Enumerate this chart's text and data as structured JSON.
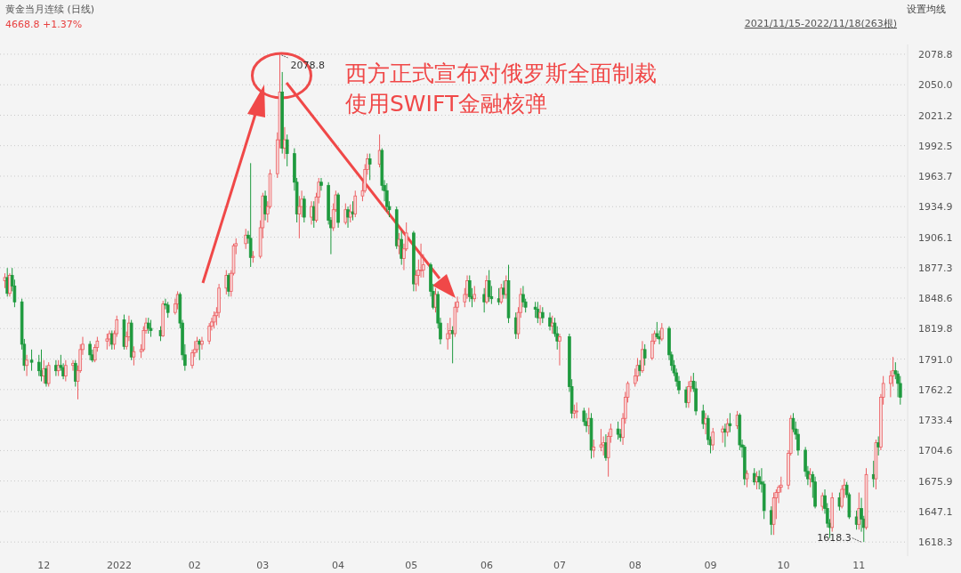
{
  "chart_data": {
    "type": "candlestick",
    "title": "黄金当月连续 (日线)",
    "subtitle": "2021/11/15-2022/11/18(263根)",
    "annotations": [
      "4668.8 +1.37%",
      "设置均线",
      "西方正式宣布对俄罗斯全面制裁",
      "使用SWIFT金融核弹",
      {
        "text": "2078.8",
        "x": "2022-03-08",
        "y": 2078.8
      },
      {
        "text": "1618.3",
        "x": "2022-11-03",
        "y": 1618.3
      }
    ],
    "grid": "y",
    "ylim": [
      1605,
      2088
    ],
    "yticks": [
      1618.3,
      1647.1,
      1675.9,
      1704.6,
      1733.4,
      1762.2,
      {
        "value": 1791,
        "label": "1791.0"
      },
      1819.8,
      1848.6,
      1877.3,
      1906.1,
      1934.9,
      1963.7,
      1992.5,
      2021.2,
      {
        "value": 2050,
        "label": "2050.0"
      },
      2078.8
    ],
    "xlim": [
      "2021-11-13",
      "2022-11-21"
    ],
    "xticks": [
      {
        "value": "2021-12-01",
        "label": "12"
      },
      {
        "value": "2022-01-01",
        "label": "2022"
      },
      {
        "value": "2022-02-01",
        "label": "02"
      },
      {
        "value": "2022-03-01",
        "label": "03"
      },
      {
        "value": "2022-04-01",
        "label": "04"
      },
      {
        "value": "2022-05-01",
        "label": "05"
      },
      {
        "value": "2022-06-01",
        "label": "06"
      },
      {
        "value": "2022-07-01",
        "label": "07"
      },
      {
        "value": "2022-08-01",
        "label": "08"
      },
      {
        "value": "2022-09-01",
        "label": "09"
      },
      {
        "value": "2022-10-01",
        "label": "10"
      },
      {
        "value": "2022-11-01",
        "label": "11"
      }
    ],
    "x": [
      "2021-11-15",
      "2021-11-16",
      "2021-11-17",
      "2021-11-18",
      "2021-11-19",
      "2021-11-22",
      "2021-11-23",
      "2021-11-24",
      "2021-11-26",
      "2021-11-29",
      "2021-11-30",
      "2021-12-01",
      "2021-12-02",
      "2021-12-03",
      "2021-12-06",
      "2021-12-07",
      "2021-12-08",
      "2021-12-09",
      "2021-12-10",
      "2021-12-13",
      "2021-12-14",
      "2021-12-15",
      "2021-12-16",
      "2021-12-17",
      "2021-12-20",
      "2021-12-21",
      "2021-12-22",
      "2021-12-23",
      "2021-12-27",
      "2021-12-28",
      "2021-12-29",
      "2021-12-30",
      "2021-12-31",
      "2022-01-03",
      "2022-01-04",
      "2022-01-05",
      "2022-01-06",
      "2022-01-07",
      "2022-01-10",
      "2022-01-11",
      "2022-01-12",
      "2022-01-13",
      "2022-01-14",
      "2022-01-18",
      "2022-01-19",
      "2022-01-20",
      "2022-01-21",
      "2022-01-24",
      "2022-01-25",
      "2022-01-26",
      "2022-01-27",
      "2022-01-28",
      "2022-01-31",
      "2022-02-01",
      "2022-02-02",
      "2022-02-03",
      "2022-02-04",
      "2022-02-07",
      "2022-02-08",
      "2022-02-09",
      "2022-02-10",
      "2022-02-11",
      "2022-02-14",
      "2022-02-15",
      "2022-02-16",
      "2022-02-17",
      "2022-02-18",
      "2022-02-22",
      "2022-02-23",
      "2022-02-24",
      "2022-02-25",
      "2022-02-28",
      "2022-03-01",
      "2022-03-02",
      "2022-03-03",
      "2022-03-04",
      "2022-03-07",
      "2022-03-08",
      "2022-03-09",
      "2022-03-10",
      "2022-03-11",
      "2022-03-14",
      "2022-03-15",
      "2022-03-16",
      "2022-03-17",
      "2022-03-18",
      "2022-03-21",
      "2022-03-22",
      "2022-03-23",
      "2022-03-24",
      "2022-03-25",
      "2022-03-28",
      "2022-03-29",
      "2022-03-30",
      "2022-03-31",
      "2022-04-01",
      "2022-04-04",
      "2022-04-05",
      "2022-04-06",
      "2022-04-07",
      "2022-04-08",
      "2022-04-11",
      "2022-04-12",
      "2022-04-13",
      "2022-04-14",
      "2022-04-18",
      "2022-04-19",
      "2022-04-20",
      "2022-04-21",
      "2022-04-22",
      "2022-04-25",
      "2022-04-26",
      "2022-04-27",
      "2022-04-28",
      "2022-04-29",
      "2022-05-02",
      "2022-05-03",
      "2022-05-04",
      "2022-05-05",
      "2022-05-06",
      "2022-05-09",
      "2022-05-10",
      "2022-05-11",
      "2022-05-12",
      "2022-05-13",
      "2022-05-16",
      "2022-05-17",
      "2022-05-18",
      "2022-05-19",
      "2022-05-20",
      "2022-05-23",
      "2022-05-24",
      "2022-05-25",
      "2022-05-26",
      "2022-05-27",
      "2022-05-31",
      "2022-06-01",
      "2022-06-02",
      "2022-06-03",
      "2022-06-06",
      "2022-06-07",
      "2022-06-08",
      "2022-06-09",
      "2022-06-10",
      "2022-06-13",
      "2022-06-14",
      "2022-06-15",
      "2022-06-16",
      "2022-06-17",
      "2022-06-21",
      "2022-06-22",
      "2022-06-23",
      "2022-06-24",
      "2022-06-27",
      "2022-06-28",
      "2022-06-29",
      "2022-06-30",
      "2022-07-01",
      "2022-07-05",
      "2022-07-06",
      "2022-07-07",
      "2022-07-08",
      "2022-07-11",
      "2022-07-12",
      "2022-07-13",
      "2022-07-14",
      "2022-07-15",
      "2022-07-18",
      "2022-07-19",
      "2022-07-20",
      "2022-07-21",
      "2022-07-22",
      "2022-07-25",
      "2022-07-26",
      "2022-07-27",
      "2022-07-28",
      "2022-07-29",
      "2022-08-01",
      "2022-08-02",
      "2022-08-03",
      "2022-08-04",
      "2022-08-05",
      "2022-08-08",
      "2022-08-09",
      "2022-08-10",
      "2022-08-11",
      "2022-08-12",
      "2022-08-15",
      "2022-08-16",
      "2022-08-17",
      "2022-08-18",
      "2022-08-19",
      "2022-08-22",
      "2022-08-23",
      "2022-08-24",
      "2022-08-25",
      "2022-08-26",
      "2022-08-29",
      "2022-08-30",
      "2022-08-31",
      "2022-09-01",
      "2022-09-02",
      "2022-09-06",
      "2022-09-07",
      "2022-09-08",
      "2022-09-09",
      "2022-09-12",
      "2022-09-13",
      "2022-09-14",
      "2022-09-15",
      "2022-09-16",
      "2022-09-19",
      "2022-09-20",
      "2022-09-21",
      "2022-09-22",
      "2022-09-23",
      "2022-09-26",
      "2022-09-27",
      "2022-09-28",
      "2022-09-29",
      "2022-09-30",
      "2022-10-03",
      "2022-10-04",
      "2022-10-05",
      "2022-10-06",
      "2022-10-07",
      "2022-10-10",
      "2022-10-11",
      "2022-10-12",
      "2022-10-13",
      "2022-10-14",
      "2022-10-17",
      "2022-10-18",
      "2022-10-19",
      "2022-10-20",
      "2022-10-21",
      "2022-10-24",
      "2022-10-25",
      "2022-10-26",
      "2022-10-27",
      "2022-10-28",
      "2022-10-31",
      "2022-11-01",
      "2022-11-02",
      "2022-11-03",
      "2022-11-04",
      "2022-11-07",
      "2022-11-08",
      "2022-11-09",
      "2022-11-10",
      "2022-11-11",
      "2022-11-14",
      "2022-11-15",
      "2022-11-16",
      "2022-11-17",
      "2022-11-18"
    ],
    "ohlc": [
      [
        1865,
        1872,
        1858,
        1868
      ],
      [
        1868,
        1877,
        1850,
        1853
      ],
      [
        1853,
        1872,
        1850,
        1870
      ],
      [
        1870,
        1877,
        1855,
        1860
      ],
      [
        1860,
        1866,
        1840,
        1845
      ],
      [
        1845,
        1848,
        1800,
        1805
      ],
      [
        1805,
        1810,
        1780,
        1785
      ],
      [
        1785,
        1795,
        1775,
        1790
      ],
      [
        1790,
        1800,
        1780,
        1788
      ],
      [
        1788,
        1795,
        1775,
        1780
      ],
      [
        1780,
        1800,
        1770,
        1775
      ],
      [
        1775,
        1790,
        1768,
        1782
      ],
      [
        1782,
        1785,
        1765,
        1768
      ],
      [
        1768,
        1788,
        1765,
        1785
      ],
      [
        1785,
        1790,
        1775,
        1780
      ],
      [
        1780,
        1790,
        1775,
        1785
      ],
      [
        1785,
        1795,
        1780,
        1783
      ],
      [
        1783,
        1787,
        1772,
        1775
      ],
      [
        1775,
        1790,
        1770,
        1785
      ],
      [
        1785,
        1790,
        1780,
        1787
      ],
      [
        1787,
        1790,
        1765,
        1770
      ],
      [
        1770,
        1785,
        1753,
        1780
      ],
      [
        1780,
        1805,
        1778,
        1800
      ],
      [
        1800,
        1812,
        1795,
        1805
      ],
      [
        1805,
        1808,
        1790,
        1795
      ],
      [
        1795,
        1800,
        1788,
        1790
      ],
      [
        1790,
        1805,
        1788,
        1802
      ],
      [
        1802,
        1812,
        1798,
        1808
      ],
      [
        1808,
        1815,
        1800,
        1810
      ],
      [
        1810,
        1818,
        1803,
        1815
      ],
      [
        1815,
        1818,
        1800,
        1805
      ],
      [
        1805,
        1818,
        1800,
        1815
      ],
      [
        1815,
        1832,
        1812,
        1828
      ],
      [
        1828,
        1833,
        1800,
        1803
      ],
      [
        1803,
        1817,
        1800,
        1812
      ],
      [
        1812,
        1832,
        1808,
        1825
      ],
      [
        1825,
        1828,
        1790,
        1793
      ],
      [
        1793,
        1803,
        1785,
        1798
      ],
      [
        1798,
        1805,
        1792,
        1800
      ],
      [
        1800,
        1822,
        1798,
        1818
      ],
      [
        1818,
        1830,
        1815,
        1825
      ],
      [
        1825,
        1830,
        1815,
        1820
      ],
      [
        1820,
        1828,
        1812,
        1818
      ],
      [
        1818,
        1822,
        1808,
        1813
      ],
      [
        1813,
        1846,
        1812,
        1843
      ],
      [
        1843,
        1848,
        1838,
        1842
      ],
      [
        1842,
        1845,
        1830,
        1835
      ],
      [
        1835,
        1848,
        1833,
        1843
      ],
      [
        1843,
        1855,
        1838,
        1852
      ],
      [
        1852,
        1854,
        1820,
        1825
      ],
      [
        1825,
        1828,
        1790,
        1795
      ],
      [
        1795,
        1805,
        1780,
        1785
      ],
      [
        1785,
        1800,
        1782,
        1797
      ],
      [
        1797,
        1808,
        1793,
        1800
      ],
      [
        1800,
        1812,
        1797,
        1808
      ],
      [
        1808,
        1810,
        1790,
        1805
      ],
      [
        1805,
        1812,
        1800,
        1808
      ],
      [
        1808,
        1825,
        1805,
        1822
      ],
      [
        1822,
        1830,
        1818,
        1826
      ],
      [
        1826,
        1836,
        1820,
        1832
      ],
      [
        1832,
        1840,
        1823,
        1835
      ],
      [
        1835,
        1862,
        1830,
        1858
      ],
      [
        1858,
        1875,
        1852,
        1870
      ],
      [
        1870,
        1872,
        1850,
        1855
      ],
      [
        1855,
        1875,
        1850,
        1872
      ],
      [
        1872,
        1900,
        1870,
        1898
      ],
      [
        1898,
        1905,
        1890,
        1900
      ],
      [
        1900,
        1914,
        1895,
        1908
      ],
      [
        1908,
        1912,
        1900,
        1905
      ],
      [
        1905,
        1976,
        1878,
        1887
      ],
      [
        1887,
        1893,
        1882,
        1888
      ],
      [
        1888,
        1922,
        1886,
        1915
      ],
      [
        1915,
        1948,
        1905,
        1945
      ],
      [
        1945,
        1950,
        1922,
        1928
      ],
      [
        1928,
        1940,
        1920,
        1935
      ],
      [
        1935,
        1970,
        1933,
        1966
      ],
      [
        1966,
        2005,
        1962,
        1998
      ],
      [
        1998,
        2078.8,
        1990,
        2043
      ],
      [
        2043,
        2062,
        1985,
        1990
      ],
      [
        1990,
        2010,
        1980,
        1998
      ],
      [
        1998,
        2003,
        1973,
        1985
      ],
      [
        1985,
        1990,
        1950,
        1958
      ],
      [
        1958,
        1962,
        1920,
        1928
      ],
      [
        1928,
        1945,
        1905,
        1935
      ],
      [
        1935,
        1950,
        1925,
        1942
      ],
      [
        1942,
        1945,
        1920,
        1925
      ],
      [
        1925,
        1940,
        1918,
        1935
      ],
      [
        1935,
        1940,
        1915,
        1922
      ],
      [
        1922,
        1948,
        1920,
        1944
      ],
      [
        1944,
        1962,
        1938,
        1958
      ],
      [
        1958,
        1962,
        1950,
        1955
      ],
      [
        1955,
        1958,
        1918,
        1922
      ],
      [
        1922,
        1925,
        1890,
        1915
      ],
      [
        1915,
        1938,
        1912,
        1932
      ],
      [
        1932,
        1950,
        1930,
        1946
      ],
      [
        1946,
        1948,
        1915,
        1920
      ],
      [
        1920,
        1938,
        1918,
        1932
      ],
      [
        1932,
        1935,
        1915,
        1925
      ],
      [
        1925,
        1937,
        1920,
        1930
      ],
      [
        1930,
        1940,
        1922,
        1928
      ],
      [
        1928,
        1950,
        1925,
        1945
      ],
      [
        1945,
        1958,
        1940,
        1950
      ],
      [
        1950,
        1975,
        1948,
        1970
      ],
      [
        1970,
        1985,
        1965,
        1980
      ],
      [
        1980,
        1985,
        1960,
        1975
      ],
      [
        1975,
        2003,
        1972,
        1988
      ],
      [
        1988,
        1990,
        1950,
        1955
      ],
      [
        1955,
        1960,
        1940,
        1950
      ],
      [
        1950,
        1957,
        1930,
        1935
      ],
      [
        1935,
        1940,
        1925,
        1932
      ],
      [
        1932,
        1935,
        1895,
        1898
      ],
      [
        1898,
        1910,
        1890,
        1904
      ],
      [
        1904,
        1912,
        1880,
        1886
      ],
      [
        1886,
        1900,
        1875,
        1895
      ],
      [
        1895,
        1920,
        1893,
        1910
      ],
      [
        1910,
        1912,
        1855,
        1862
      ],
      [
        1862,
        1875,
        1855,
        1870
      ],
      [
        1870,
        1885,
        1860,
        1875
      ],
      [
        1875,
        1900,
        1868,
        1875
      ],
      [
        1875,
        1890,
        1868,
        1880
      ],
      [
        1880,
        1882,
        1850,
        1855
      ],
      [
        1855,
        1862,
        1838,
        1840
      ],
      [
        1840,
        1858,
        1835,
        1852
      ],
      [
        1852,
        1855,
        1820,
        1825
      ],
      [
        1825,
        1830,
        1805,
        1810
      ],
      [
        1810,
        1825,
        1800,
        1815
      ],
      [
        1815,
        1830,
        1810,
        1818
      ],
      [
        1818,
        1822,
        1787,
        1815
      ],
      [
        1815,
        1845,
        1812,
        1840
      ],
      [
        1840,
        1850,
        1835,
        1845
      ],
      [
        1845,
        1858,
        1840,
        1852
      ],
      [
        1852,
        1870,
        1848,
        1865
      ],
      [
        1865,
        1870,
        1845,
        1850
      ],
      [
        1850,
        1858,
        1840,
        1848
      ],
      [
        1848,
        1860,
        1845,
        1852
      ],
      [
        1852,
        1858,
        1835,
        1845
      ],
      [
        1845,
        1870,
        1843,
        1865
      ],
      [
        1865,
        1875,
        1845,
        1850
      ],
      [
        1850,
        1860,
        1843,
        1848
      ],
      [
        1848,
        1858,
        1842,
        1845
      ],
      [
        1845,
        1862,
        1843,
        1858
      ],
      [
        1858,
        1865,
        1848,
        1852
      ],
      [
        1852,
        1870,
        1848,
        1865
      ],
      [
        1865,
        1880,
        1825,
        1830
      ],
      [
        1830,
        1835,
        1810,
        1815
      ],
      [
        1815,
        1840,
        1810,
        1835
      ],
      [
        1835,
        1858,
        1830,
        1852
      ],
      [
        1852,
        1860,
        1840,
        1845
      ],
      [
        1845,
        1848,
        1835,
        1840
      ],
      [
        1840,
        1845,
        1830,
        1838
      ],
      [
        1838,
        1845,
        1825,
        1830
      ],
      [
        1830,
        1842,
        1823,
        1835
      ],
      [
        1835,
        1840,
        1825,
        1830
      ],
      [
        1830,
        1835,
        1818,
        1822
      ],
      [
        1822,
        1832,
        1815,
        1825
      ],
      [
        1825,
        1830,
        1812,
        1815
      ],
      [
        1815,
        1822,
        1800,
        1808
      ],
      [
        1808,
        1815,
        1785,
        1812
      ],
      [
        1812,
        1815,
        1760,
        1765
      ],
      [
        1765,
        1772,
        1735,
        1740
      ],
      [
        1740,
        1748,
        1735,
        1742
      ],
      [
        1742,
        1750,
        1735,
        1742
      ],
      [
        1742,
        1745,
        1728,
        1732
      ],
      [
        1732,
        1740,
        1722,
        1728
      ],
      [
        1728,
        1745,
        1720,
        1735
      ],
      [
        1735,
        1740,
        1697,
        1705
      ],
      [
        1705,
        1715,
        1698,
        1708
      ],
      [
        1708,
        1725,
        1704,
        1710
      ],
      [
        1710,
        1718,
        1700,
        1712
      ],
      [
        1712,
        1720,
        1695,
        1698
      ],
      [
        1698,
        1722,
        1680,
        1718
      ],
      [
        1718,
        1730,
        1712,
        1725
      ],
      [
        1725,
        1732,
        1715,
        1720
      ],
      [
        1720,
        1725,
        1713,
        1717
      ],
      [
        1717,
        1740,
        1710,
        1735
      ],
      [
        1735,
        1760,
        1730,
        1755
      ],
      [
        1755,
        1770,
        1750,
        1768
      ],
      [
        1768,
        1782,
        1765,
        1775
      ],
      [
        1775,
        1792,
        1770,
        1785
      ],
      [
        1785,
        1790,
        1775,
        1780
      ],
      [
        1780,
        1808,
        1778,
        1800
      ],
      [
        1800,
        1805,
        1785,
        1792
      ],
      [
        1792,
        1815,
        1790,
        1808
      ],
      [
        1808,
        1818,
        1805,
        1815
      ],
      [
        1815,
        1826,
        1810,
        1812
      ],
      [
        1812,
        1818,
        1805,
        1810
      ],
      [
        1810,
        1825,
        1808,
        1820
      ],
      [
        1820,
        1822,
        1790,
        1795
      ],
      [
        1795,
        1798,
        1780,
        1785
      ],
      [
        1785,
        1790,
        1775,
        1778
      ],
      [
        1778,
        1782,
        1765,
        1770
      ],
      [
        1770,
        1775,
        1758,
        1762
      ],
      [
        1762,
        1765,
        1745,
        1750
      ],
      [
        1750,
        1770,
        1745,
        1765
      ],
      [
        1765,
        1775,
        1760,
        1770
      ],
      [
        1770,
        1778,
        1760,
        1763
      ],
      [
        1763,
        1770,
        1738,
        1742
      ],
      [
        1742,
        1748,
        1725,
        1730
      ],
      [
        1730,
        1740,
        1720,
        1735
      ],
      [
        1735,
        1738,
        1710,
        1715
      ],
      [
        1715,
        1718,
        1702,
        1710
      ],
      [
        1710,
        1726,
        1705,
        1722
      ],
      [
        1722,
        1728,
        1712,
        1725
      ],
      [
        1725,
        1730,
        1708,
        1722
      ],
      [
        1722,
        1735,
        1718,
        1730
      ],
      [
        1730,
        1740,
        1722,
        1728
      ],
      [
        1728,
        1742,
        1725,
        1738
      ],
      [
        1738,
        1740,
        1705,
        1710
      ],
      [
        1710,
        1715,
        1698,
        1708
      ],
      [
        1708,
        1710,
        1672,
        1678
      ],
      [
        1678,
        1686,
        1670,
        1683
      ],
      [
        1683,
        1688,
        1672,
        1675
      ],
      [
        1675,
        1685,
        1668,
        1680
      ],
      [
        1680,
        1686,
        1668,
        1675
      ],
      [
        1675,
        1688,
        1665,
        1673
      ],
      [
        1673,
        1676,
        1640,
        1648
      ],
      [
        1648,
        1652,
        1625,
        1635
      ],
      [
        1635,
        1665,
        1625,
        1660
      ],
      [
        1660,
        1668,
        1640,
        1665
      ],
      [
        1665,
        1672,
        1655,
        1670
      ],
      [
        1670,
        1680,
        1665,
        1672
      ],
      [
        1672,
        1705,
        1668,
        1702
      ],
      [
        1702,
        1738,
        1700,
        1735
      ],
      [
        1735,
        1740,
        1722,
        1725
      ],
      [
        1725,
        1732,
        1715,
        1720
      ],
      [
        1720,
        1725,
        1700,
        1705
      ],
      [
        1705,
        1708,
        1680,
        1685
      ],
      [
        1685,
        1690,
        1672,
        1678
      ],
      [
        1678,
        1688,
        1670,
        1682
      ],
      [
        1682,
        1685,
        1660,
        1675
      ],
      [
        1675,
        1680,
        1650,
        1652
      ],
      [
        1652,
        1665,
        1648,
        1662
      ],
      [
        1662,
        1668,
        1645,
        1650
      ],
      [
        1650,
        1655,
        1632,
        1636
      ],
      [
        1636,
        1640,
        1622,
        1632
      ],
      [
        1632,
        1665,
        1628,
        1660
      ],
      [
        1660,
        1665,
        1648,
        1652
      ],
      [
        1652,
        1672,
        1650,
        1668
      ],
      [
        1668,
        1678,
        1660,
        1672
      ],
      [
        1672,
        1675,
        1660,
        1663
      ],
      [
        1663,
        1665,
        1640,
        1642
      ],
      [
        1642,
        1648,
        1630,
        1635
      ],
      [
        1635,
        1665,
        1630,
        1650
      ],
      [
        1650,
        1660,
        1628,
        1640
      ],
      [
        1640,
        1643,
        1618.3,
        1632
      ],
      [
        1632,
        1688,
        1630,
        1682
      ],
      [
        1682,
        1695,
        1670,
        1678
      ],
      [
        1678,
        1715,
        1668,
        1712
      ],
      [
        1712,
        1718,
        1700,
        1708
      ],
      [
        1708,
        1758,
        1705,
        1755
      ],
      [
        1755,
        1775,
        1748,
        1768
      ],
      [
        1768,
        1780,
        1755,
        1775
      ],
      [
        1775,
        1793,
        1765,
        1780
      ],
      [
        1780,
        1788,
        1772,
        1777
      ],
      [
        1777,
        1780,
        1755,
        1768
      ],
      [
        1768,
        1775,
        1748,
        1755
      ]
    ]
  }
}
